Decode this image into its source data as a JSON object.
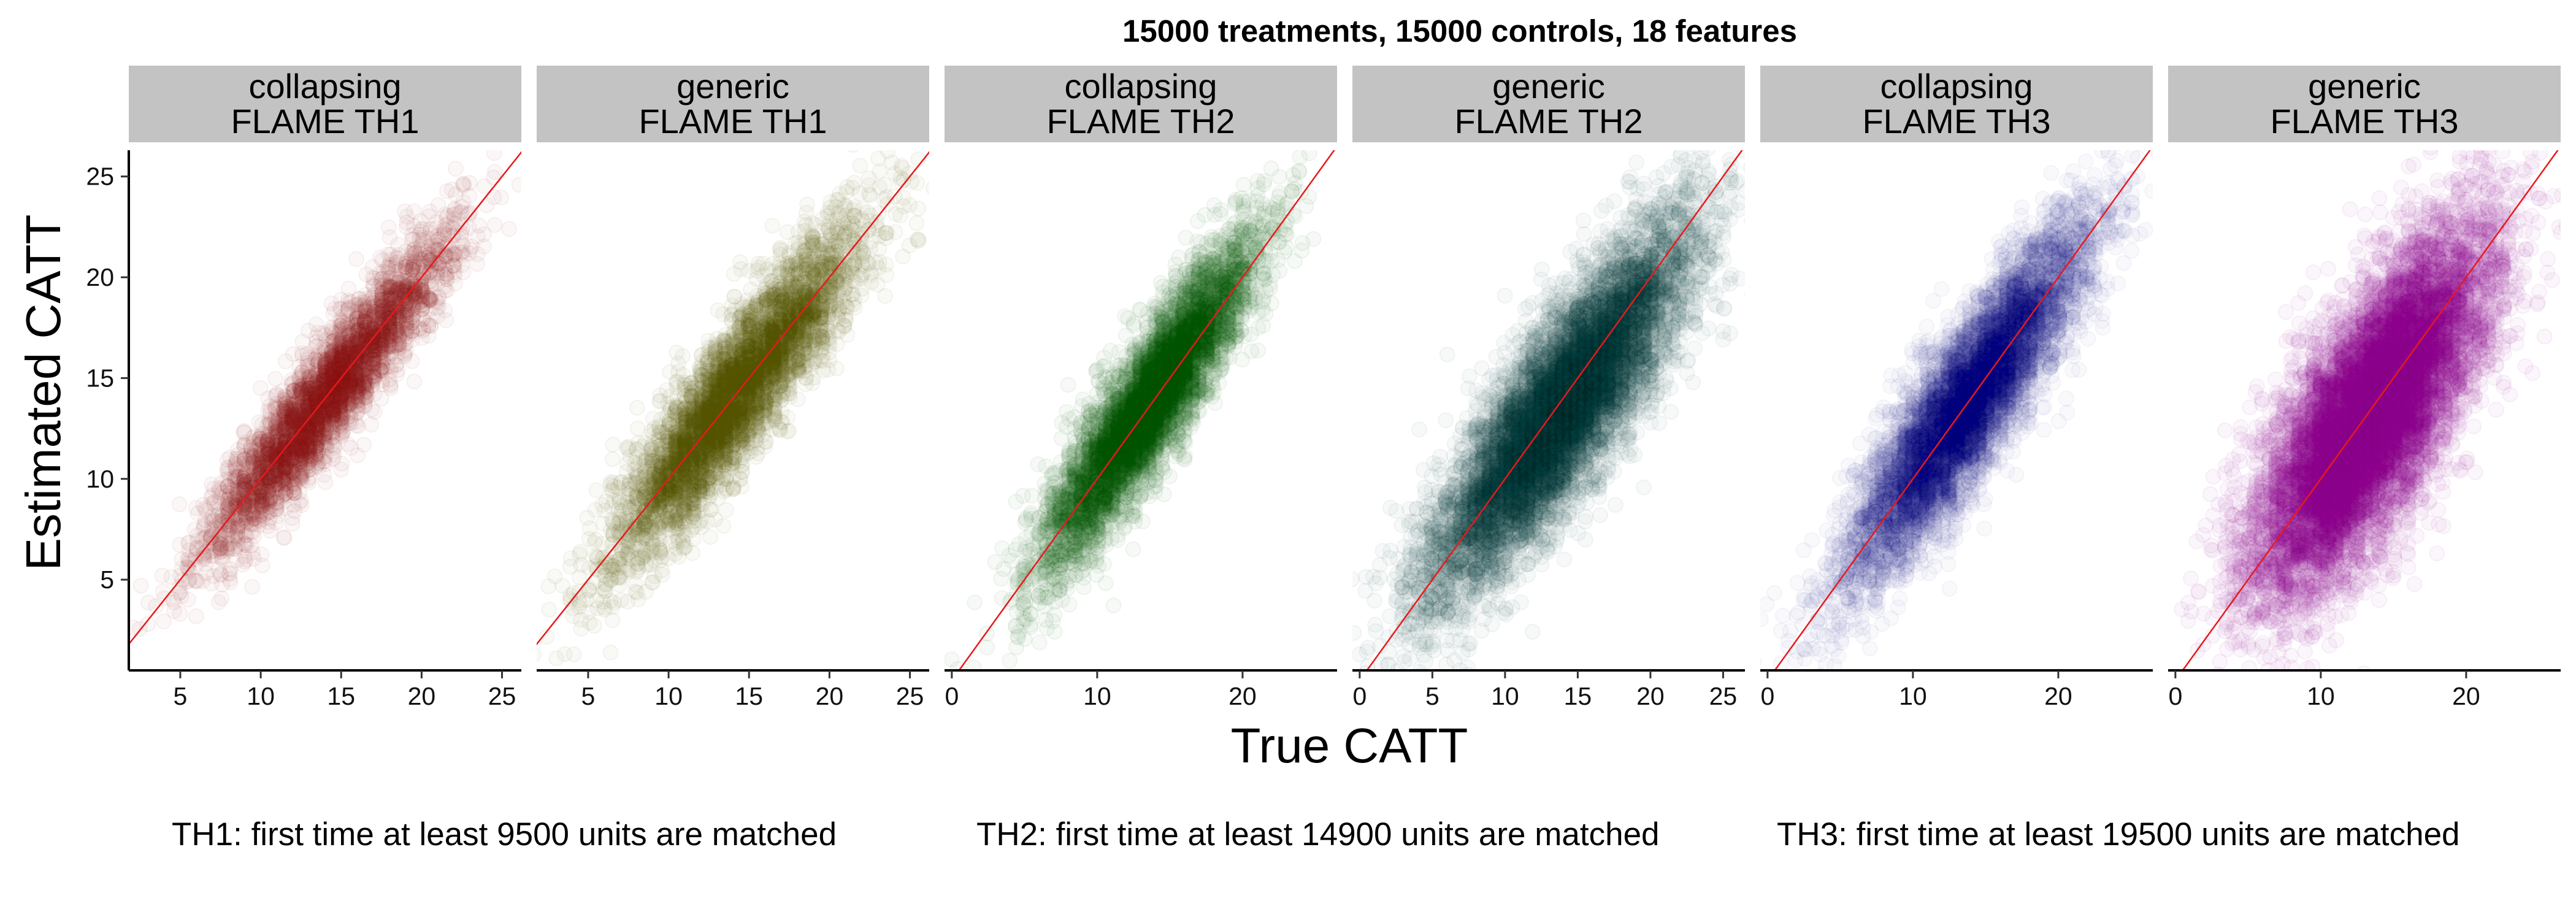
{
  "chart_data": {
    "type": "scatter",
    "title": "15000 treatments, 15000 controls, 18 features",
    "xlabel": "True CATT",
    "ylabel": "Estimated CATT",
    "ylim": [
      0.5,
      26.3
    ],
    "yticks": [
      5,
      10,
      15,
      20,
      25
    ],
    "reference_line": {
      "type": "identity",
      "slope": 1,
      "intercept": 0,
      "color": "#e8191c"
    },
    "grid": false,
    "panels": [
      {
        "strip": [
          "collapsing",
          "FLAME TH1"
        ],
        "color": "#8b1a1a",
        "alpha": 0.035,
        "n_points": 4200,
        "xlim": [
          1.8,
          26.2
        ],
        "xticks": [
          5,
          10,
          15,
          20,
          25
        ],
        "x_mean": 14.2,
        "x_sd": 3.6,
        "y_mean": 14.2,
        "y_sd": 3.8,
        "correlation": 0.93
      },
      {
        "strip": [
          "generic",
          "FLAME TH1"
        ],
        "color": "#5b5400",
        "alpha": 0.035,
        "n_points": 5200,
        "xlim": [
          1.8,
          26.2
        ],
        "xticks": [
          5,
          10,
          15,
          20,
          25
        ],
        "x_mean": 14.2,
        "x_sd": 3.7,
        "y_mean": 14.2,
        "y_sd": 4.0,
        "correlation": 0.9
      },
      {
        "strip": [
          "collapsing",
          "FLAME TH2"
        ],
        "color": "#005200",
        "alpha": 0.035,
        "n_points": 6000,
        "xlim": [
          -0.5,
          26.5
        ],
        "xticks": [
          0,
          10,
          20
        ],
        "x_mean": 13.6,
        "x_sd": 3.6,
        "y_mean": 13.8,
        "y_sd": 4.0,
        "correlation": 0.9
      },
      {
        "strip": [
          "generic",
          "FLAME TH2"
        ],
        "color": "#003535",
        "alpha": 0.03,
        "n_points": 10000,
        "xlim": [
          -0.5,
          26.5
        ],
        "xticks": [
          0,
          5,
          10,
          15,
          20,
          25
        ],
        "x_mean": 13.8,
        "x_sd": 4.4,
        "y_mean": 13.4,
        "y_sd": 4.5,
        "correlation": 0.85
      },
      {
        "strip": [
          "collapsing",
          "FLAME TH3"
        ],
        "color": "#000080",
        "alpha": 0.025,
        "n_points": 7500,
        "xlim": [
          -0.5,
          26.5
        ],
        "xticks": [
          0,
          10,
          20
        ],
        "x_mean": 13.8,
        "x_sd": 4.0,
        "y_mean": 13.8,
        "y_sd": 4.3,
        "correlation": 0.88
      },
      {
        "strip": [
          "generic",
          "FLAME TH3"
        ],
        "color": "#8b008b",
        "alpha": 0.035,
        "n_points": 12000,
        "xlim": [
          -0.5,
          26.5
        ],
        "xticks": [
          0,
          10,
          20
        ],
        "x_mean": 13.5,
        "x_sd": 3.9,
        "y_mean": 13.3,
        "y_sd": 4.4,
        "correlation": 0.74
      }
    ],
    "captions": [
      "TH1: first time at least 9500 units are matched",
      "TH2: first time at least 14900 units are matched",
      "TH3: first time at least 19500 units are matched"
    ]
  }
}
